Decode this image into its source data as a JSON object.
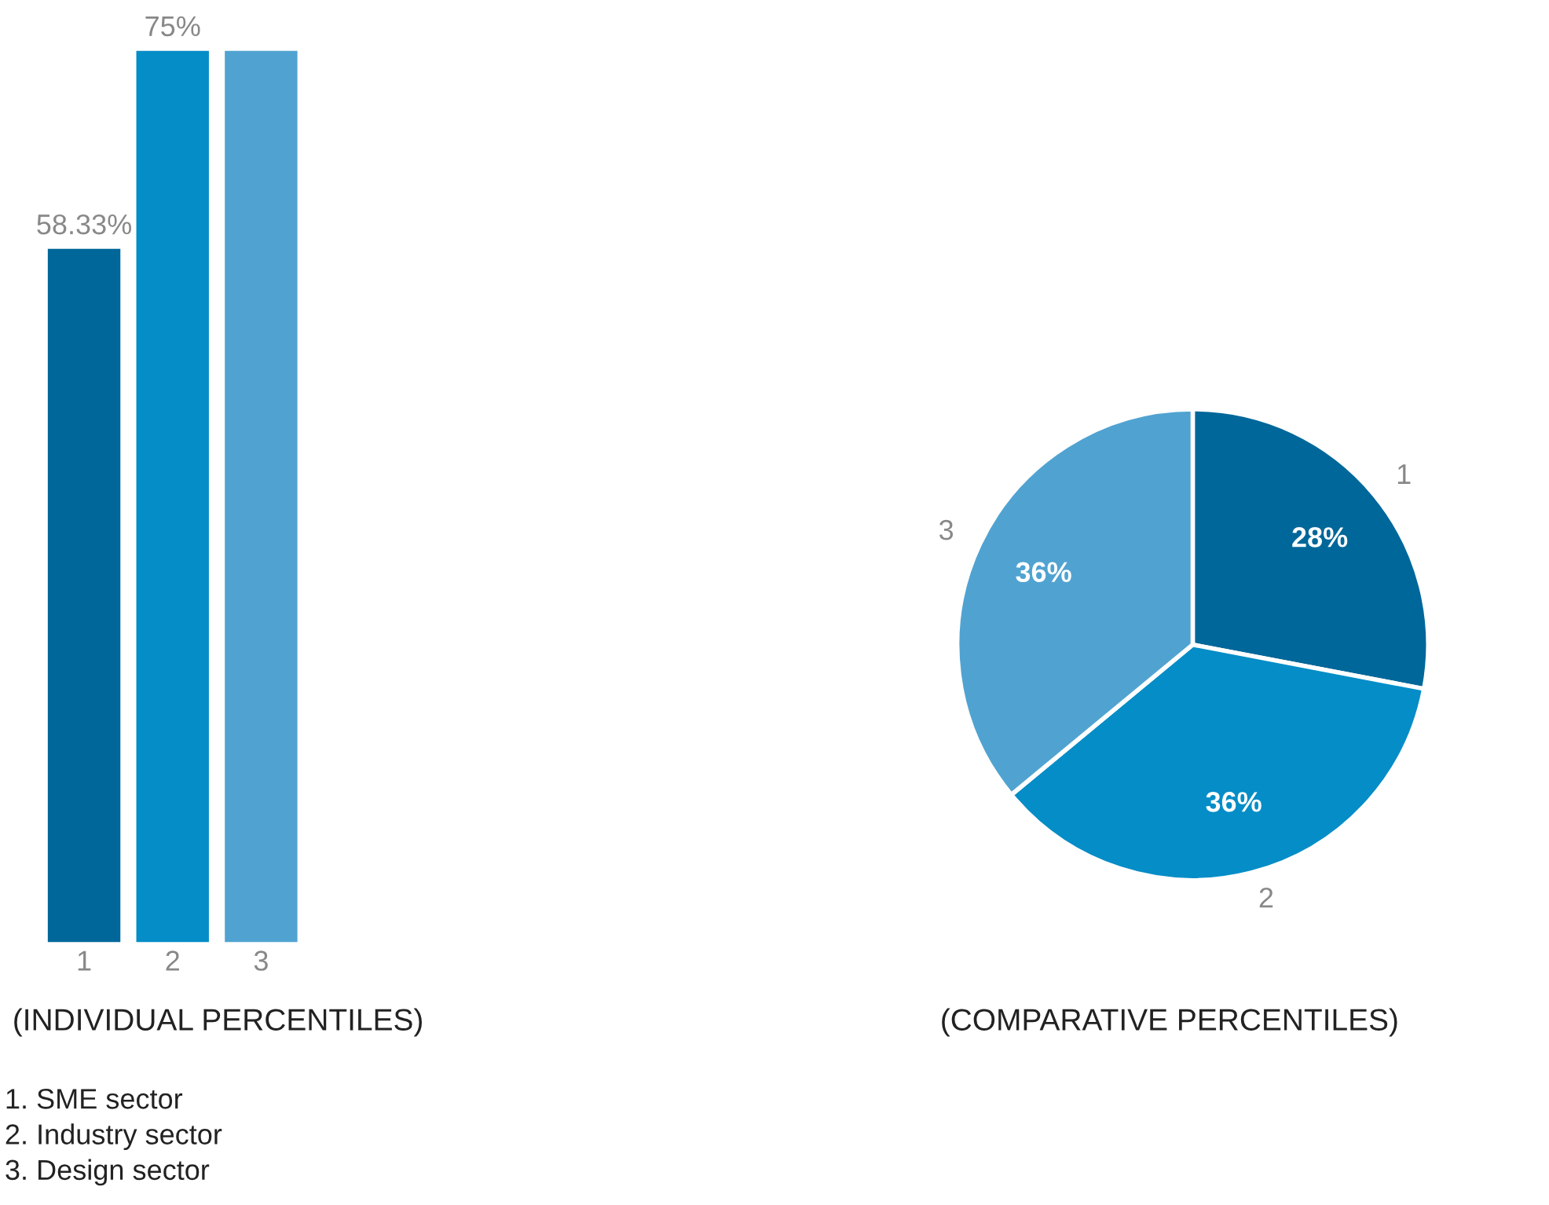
{
  "chart_data": [
    {
      "type": "bar",
      "categories": [
        "1",
        "2",
        "3"
      ],
      "values": [
        58.33,
        75,
        75
      ],
      "colors": [
        "#00679a",
        "#058dc7",
        "#50a3d1"
      ],
      "value_labels": [
        "58.33%",
        "75%",
        null
      ],
      "xlabel": "(INDIVIDUAL PERCENTILES)",
      "annotations": [
        "1. SME sector",
        "2. Industry sector",
        "3. Design sector"
      ]
    },
    {
      "type": "pie",
      "categories": [
        "1",
        "2",
        "3"
      ],
      "values": [
        28,
        36,
        36
      ],
      "colors": [
        "#00679a",
        "#058dc7",
        "#50a3d1"
      ],
      "value_labels": [
        "28%",
        "36%",
        "36%"
      ],
      "xlabel": "(COMPARATIVE PERCENTILES)"
    }
  ]
}
